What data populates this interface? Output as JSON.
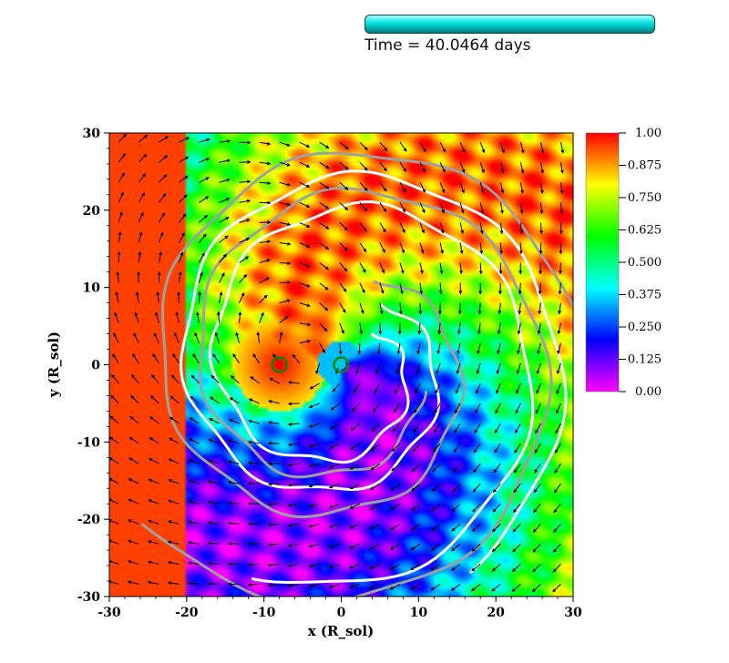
{
  "time_label": "Time = 40.0464 days",
  "progress_fraction": 1.0,
  "chart_data": {
    "type": "heatmap",
    "xlabel": "x (R_sol)",
    "ylabel": "y (R_sol)",
    "xlim": [
      -30,
      30
    ],
    "ylim": [
      -30,
      30
    ],
    "x_ticks": [
      "-30",
      "-20",
      "-10",
      "0",
      "10",
      "20",
      "30"
    ],
    "y_ticks": [
      "-30",
      "-20",
      "-10",
      "0",
      "10",
      "20",
      "30"
    ],
    "colorbar": {
      "min": 0.0,
      "max": 1.0,
      "ticks": [
        "1.00",
        "0.875",
        "0.750",
        "0.625",
        "0.500",
        "0.375",
        "0.250",
        "0.125",
        "0.00"
      ],
      "colors": [
        "#ff00ff",
        "#0000ff",
        "#00ffff",
        "#00ff00",
        "#ffff00",
        "#ff0000"
      ]
    },
    "markers": [
      {
        "name": "particle-1",
        "x": -8,
        "y": 0,
        "fill": "#ff0000",
        "ring": "#008800"
      },
      {
        "name": "particle-2",
        "x": 0,
        "y": 0,
        "fill": "#00cccc",
        "ring": "#008800"
      }
    ]
  }
}
